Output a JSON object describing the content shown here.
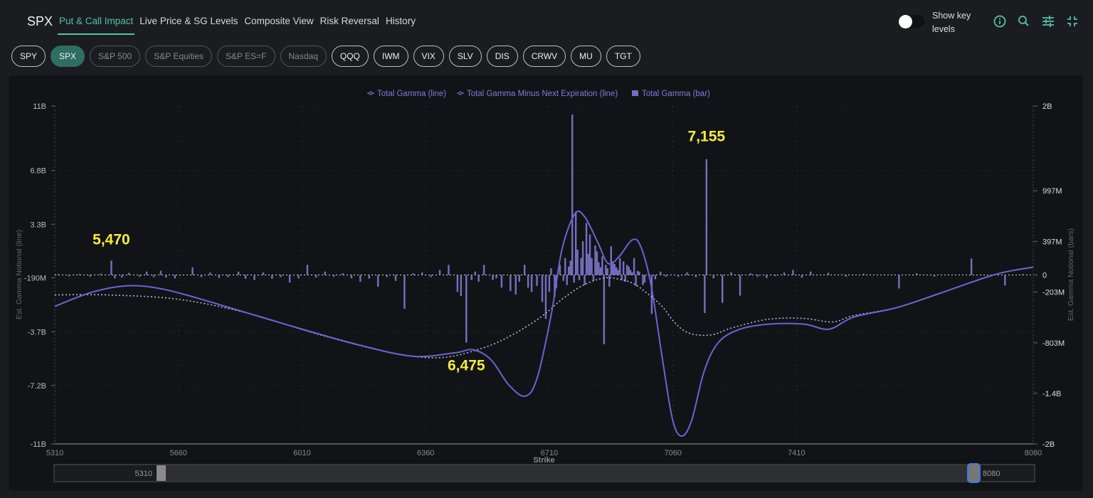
{
  "header": {
    "symbol": "SPX",
    "tabs": [
      "Put & Call Impact",
      "Live Price & SG Levels",
      "Composite View",
      "Risk Reversal",
      "History"
    ],
    "active_tab": 0,
    "toggle_label": "Show key levels",
    "toggle_on": false,
    "icons": [
      "info-icon",
      "search-icon",
      "sliders-icon",
      "collapse-icon"
    ]
  },
  "tickers": [
    {
      "label": "SPY",
      "state": "normal"
    },
    {
      "label": "SPX",
      "state": "active"
    },
    {
      "label": "S&P 500",
      "state": "dim"
    },
    {
      "label": "S&P Equities",
      "state": "dim"
    },
    {
      "label": "S&P ES=F",
      "state": "dim"
    },
    {
      "label": "Nasdaq",
      "state": "dim"
    },
    {
      "label": "QQQ",
      "state": "normal"
    },
    {
      "label": "IWM",
      "state": "normal"
    },
    {
      "label": "VIX",
      "state": "normal"
    },
    {
      "label": "SLV",
      "state": "normal"
    },
    {
      "label": "DIS",
      "state": "normal"
    },
    {
      "label": "CRWV",
      "state": "normal"
    },
    {
      "label": "MU",
      "state": "normal"
    },
    {
      "label": "TGT",
      "state": "normal"
    }
  ],
  "colors": {
    "accent": "#4fc3a9",
    "series": "#6b63d6",
    "bar": "#7570c0",
    "annotation": "#f4ee3a"
  },
  "chart_data": {
    "type": "bar+line",
    "legend": [
      "Total Gamma (line)",
      "Total Gamma Minus Next Expiration (line)",
      "Total Gamma (bar)"
    ],
    "legend_position": "top-center",
    "xlabel": "Strike",
    "ylabel_left": "Est. Gamma Notional (line)",
    "ylabel_right": "Est. Gamma Notional (bars)",
    "xlim": [
      5310,
      8080
    ],
    "xticks": [
      "5310",
      "5660",
      "6010",
      "6360",
      "6710",
      "7060",
      "7410",
      "8080"
    ],
    "ylim_left_B": [
      -11,
      11
    ],
    "yticks_left": [
      {
        "v": 11,
        "t": "11B"
      },
      {
        "v": 6.8,
        "t": "6.8B"
      },
      {
        "v": 3.3,
        "t": "3.3B"
      },
      {
        "v": -0.19,
        "t": "-190M"
      },
      {
        "v": -3.7,
        "t": "-3.7B"
      },
      {
        "v": -7.2,
        "t": "-7.2B"
      },
      {
        "v": -11,
        "t": "-11B"
      }
    ],
    "ylim_right_M": [
      -2000,
      2000
    ],
    "yticks_right": [
      {
        "v": 2000,
        "t": "2B"
      },
      {
        "v": 997,
        "t": "997M"
      },
      {
        "v": 397,
        "t": "397M"
      },
      {
        "v": 0,
        "t": "0"
      },
      {
        "v": -203,
        "t": "-203M"
      },
      {
        "v": -803,
        "t": "-803M"
      },
      {
        "v": -1400,
        "t": "-1.4B"
      },
      {
        "v": -2000,
        "t": "-2B"
      }
    ],
    "annotations": [
      {
        "strike": 5470,
        "text": "5,470",
        "y_B": 2.0
      },
      {
        "strike": 6475,
        "text": "6,475",
        "y_B": -6.2
      },
      {
        "strike": 7155,
        "text": "7,155",
        "y_B": 8.7
      }
    ],
    "total_gamma_line_B": [
      [
        5310,
        -2.04
      ],
      [
        5417,
        -1.11
      ],
      [
        5518,
        -0.7
      ],
      [
        5618,
        -0.93
      ],
      [
        5759,
        -1.81
      ],
      [
        5961,
        -3.2
      ],
      [
        6162,
        -4.5
      ],
      [
        6323,
        -5.29
      ],
      [
        6444,
        -5.06
      ],
      [
        6494,
        -4.87
      ],
      [
        6545,
        -5.52
      ],
      [
        6595,
        -7.15
      ],
      [
        6642,
        -7.89
      ],
      [
        6676,
        -6.68
      ],
      [
        6716,
        -2.51
      ],
      [
        6746,
        1.67
      ],
      [
        6783,
        3.99
      ],
      [
        6811,
        3.76
      ],
      [
        6847,
        2.13
      ],
      [
        6877,
        0.74
      ],
      [
        6908,
        1.21
      ],
      [
        6944,
        2.27
      ],
      [
        6968,
        1.9
      ],
      [
        6998,
        -0.65
      ],
      [
        7029,
        -5.29
      ],
      [
        7059,
        -9.42
      ],
      [
        7085,
        -10.49
      ],
      [
        7113,
        -9.47
      ],
      [
        7149,
        -6.22
      ],
      [
        7190,
        -4.36
      ],
      [
        7250,
        -3.53
      ],
      [
        7331,
        -3.2
      ],
      [
        7431,
        -3.2
      ],
      [
        7502,
        -3.53
      ],
      [
        7572,
        -2.74
      ],
      [
        7693,
        -2.13
      ],
      [
        7814,
        -1.21
      ],
      [
        7975,
        0.05
      ],
      [
        8080,
        0.51
      ]
    ],
    "total_gamma_minus_next_exp_line_B": [
      [
        5310,
        -1.3
      ],
      [
        5457,
        -1.3
      ],
      [
        5659,
        -1.58
      ],
      [
        5860,
        -2.51
      ],
      [
        6061,
        -3.9
      ],
      [
        6263,
        -5.06
      ],
      [
        6404,
        -5.38
      ],
      [
        6525,
        -4.73
      ],
      [
        6605,
        -3.9
      ],
      [
        6686,
        -2.74
      ],
      [
        6746,
        -1.58
      ],
      [
        6807,
        -0.65
      ],
      [
        6867,
        -0.19
      ],
      [
        6908,
        -0.28
      ],
      [
        6948,
        -0.56
      ],
      [
        6988,
        -1.21
      ],
      [
        7029,
        -2.04
      ],
      [
        7069,
        -3.2
      ],
      [
        7109,
        -3.81
      ],
      [
        7169,
        -3.9
      ],
      [
        7229,
        -3.43
      ],
      [
        7331,
        -2.88
      ],
      [
        7431,
        -2.83
      ],
      [
        7512,
        -3.06
      ],
      [
        7572,
        -2.64
      ],
      [
        7693,
        -2.13
      ],
      [
        7814,
        -1.21
      ],
      [
        7975,
        0.05
      ],
      [
        8080,
        0.51
      ]
    ],
    "total_gamma_bars_M": [
      [
        5320,
        10
      ],
      [
        5350,
        -15
      ],
      [
        5380,
        12
      ],
      [
        5410,
        -20
      ],
      [
        5440,
        15
      ],
      [
        5470,
        170
      ],
      [
        5480,
        -40
      ],
      [
        5500,
        -30
      ],
      [
        5520,
        25
      ],
      [
        5550,
        -20
      ],
      [
        5570,
        40
      ],
      [
        5590,
        -25
      ],
      [
        5610,
        50
      ],
      [
        5625,
        -30
      ],
      [
        5650,
        -40
      ],
      [
        5700,
        90
      ],
      [
        5725,
        -25
      ],
      [
        5750,
        30
      ],
      [
        5775,
        -35
      ],
      [
        5800,
        -25
      ],
      [
        5830,
        40
      ],
      [
        5850,
        -45
      ],
      [
        5875,
        -60
      ],
      [
        5900,
        30
      ],
      [
        5925,
        -45
      ],
      [
        5950,
        -25
      ],
      [
        5975,
        -90
      ],
      [
        6000,
        -40
      ],
      [
        6025,
        120
      ],
      [
        6050,
        -30
      ],
      [
        6075,
        40
      ],
      [
        6100,
        -20
      ],
      [
        6125,
        20
      ],
      [
        6150,
        -40
      ],
      [
        6175,
        -80
      ],
      [
        6200,
        -45
      ],
      [
        6225,
        -140
      ],
      [
        6250,
        -25
      ],
      [
        6275,
        -70
      ],
      [
        6300,
        -400
      ],
      [
        6325,
        20
      ],
      [
        6350,
        30
      ],
      [
        6375,
        -25
      ],
      [
        6400,
        60
      ],
      [
        6425,
        120
      ],
      [
        6450,
        -200
      ],
      [
        6460,
        -250
      ],
      [
        6475,
        -800
      ],
      [
        6490,
        -60
      ],
      [
        6500,
        40
      ],
      [
        6510,
        -80
      ],
      [
        6525,
        120
      ],
      [
        6550,
        -60
      ],
      [
        6560,
        -40
      ],
      [
        6575,
        -150
      ],
      [
        6600,
        -190
      ],
      [
        6615,
        -230
      ],
      [
        6625,
        -80
      ],
      [
        6640,
        120
      ],
      [
        6650,
        -150
      ],
      [
        6660,
        -200
      ],
      [
        6675,
        -130
      ],
      [
        6690,
        -320
      ],
      [
        6700,
        -520
      ],
      [
        6710,
        -200
      ],
      [
        6715,
        80
      ],
      [
        6725,
        -260
      ],
      [
        6730,
        -150
      ],
      [
        6740,
        120
      ],
      [
        6750,
        -70
      ],
      [
        6755,
        200
      ],
      [
        6760,
        -120
      ],
      [
        6765,
        100
      ],
      [
        6770,
        170
      ],
      [
        6775,
        1900
      ],
      [
        6780,
        -90
      ],
      [
        6785,
        750
      ],
      [
        6790,
        300
      ],
      [
        6795,
        -60
      ],
      [
        6800,
        200
      ],
      [
        6805,
        400
      ],
      [
        6810,
        -120
      ],
      [
        6815,
        615
      ],
      [
        6820,
        250
      ],
      [
        6825,
        480
      ],
      [
        6830,
        200
      ],
      [
        6835,
        -70
      ],
      [
        6840,
        350
      ],
      [
        6845,
        280
      ],
      [
        6850,
        150
      ],
      [
        6855,
        90
      ],
      [
        6860,
        220
      ],
      [
        6865,
        -820
      ],
      [
        6870,
        120
      ],
      [
        6875,
        80
      ],
      [
        6880,
        -140
      ],
      [
        6885,
        340
      ],
      [
        6890,
        160
      ],
      [
        6895,
        130
      ],
      [
        6900,
        90
      ],
      [
        6905,
        60
      ],
      [
        6910,
        200
      ],
      [
        6915,
        -60
      ],
      [
        6920,
        160
      ],
      [
        6925,
        -80
      ],
      [
        6930,
        120
      ],
      [
        6935,
        100
      ],
      [
        6940,
        60
      ],
      [
        6945,
        30
      ],
      [
        6950,
        200
      ],
      [
        6955,
        -130
      ],
      [
        6960,
        50
      ],
      [
        6965,
        40
      ],
      [
        6975,
        -120
      ],
      [
        6980,
        -90
      ],
      [
        7000,
        -460
      ],
      [
        7010,
        -50
      ],
      [
        7025,
        40
      ],
      [
        7040,
        -20
      ],
      [
        7075,
        -20
      ],
      [
        7100,
        30
      ],
      [
        7125,
        -25
      ],
      [
        7150,
        -450
      ],
      [
        7155,
        1370
      ],
      [
        7175,
        -40
      ],
      [
        7200,
        -330
      ],
      [
        7225,
        30
      ],
      [
        7250,
        -245
      ],
      [
        7280,
        20
      ],
      [
        7300,
        -20
      ],
      [
        7325,
        -35
      ],
      [
        7350,
        -15
      ],
      [
        7375,
        30
      ],
      [
        7400,
        60
      ],
      [
        7425,
        -30
      ],
      [
        7450,
        40
      ],
      [
        7500,
        25
      ],
      [
        7550,
        -20
      ],
      [
        7600,
        15
      ],
      [
        7700,
        -160
      ],
      [
        7750,
        20
      ],
      [
        7800,
        -20
      ],
      [
        7905,
        195
      ],
      [
        8000,
        -125
      ],
      [
        8050,
        10
      ]
    ],
    "zoom_range": {
      "start": "5310",
      "end": "8080"
    }
  }
}
